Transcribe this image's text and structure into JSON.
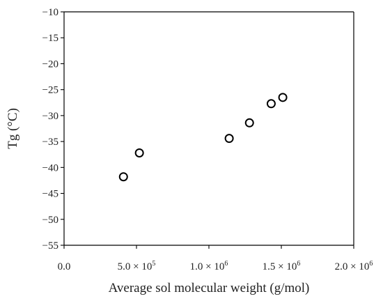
{
  "chart_data": {
    "type": "scatter",
    "xlabel": "Average sol molecular weight (g/mol)",
    "ylabel": "Tg (°C)",
    "xlim": [
      0,
      2000000
    ],
    "ylim": [
      -55,
      -10
    ],
    "x_ticks": [
      {
        "value": 0,
        "mant": "0.0",
        "exp": ""
      },
      {
        "value": 500000,
        "mant": "5.0 × 10",
        "exp": "5"
      },
      {
        "value": 1000000,
        "mant": "1.0 × 10",
        "exp": "6"
      },
      {
        "value": 1500000,
        "mant": "1.5 × 10",
        "exp": "6"
      },
      {
        "value": 2000000,
        "mant": "2.0 × 10",
        "exp": "6"
      }
    ],
    "y_ticks": [
      -10,
      -15,
      -20,
      -25,
      -30,
      -35,
      -40,
      -45,
      -50,
      -55
    ],
    "y_tick_labels": [
      "−10",
      "−15",
      "−20",
      "−25",
      "−30",
      "−35",
      "−40",
      "−45",
      "−50",
      "−55"
    ],
    "grid": false,
    "legend": "none",
    "series": [
      {
        "marker": "open-circle",
        "x": [
          410000,
          520000,
          1140000,
          1280000,
          1430000,
          1510000
        ],
        "y": [
          -41.8,
          -37.2,
          -34.4,
          -31.4,
          -27.7,
          -26.5
        ]
      }
    ]
  }
}
